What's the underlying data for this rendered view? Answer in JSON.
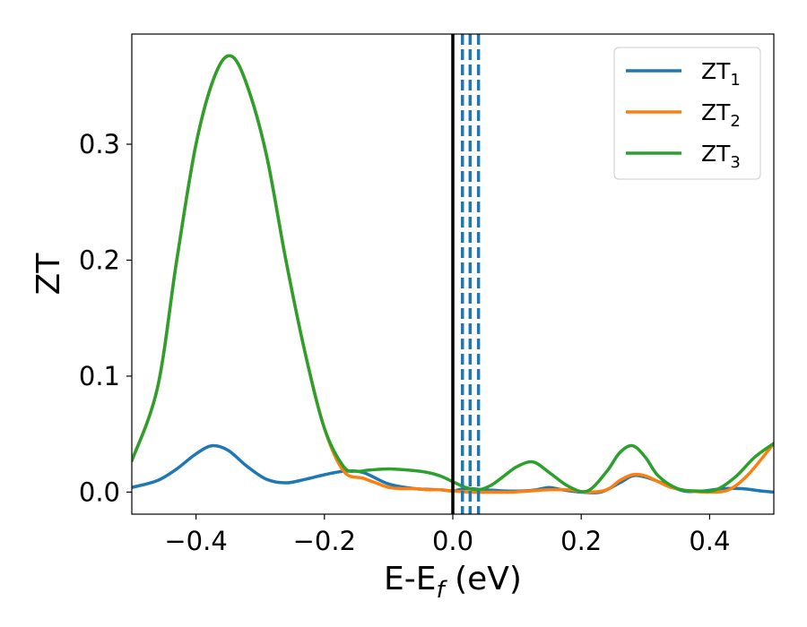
{
  "chart_data": {
    "type": "line",
    "xlabel": {
      "main": "E-E",
      "sub": "f",
      "unit": " (eV)"
    },
    "ylabel": "ZT",
    "xlim": [
      -0.5,
      0.5
    ],
    "ylim": [
      -0.019,
      0.395
    ],
    "xticks": [
      -0.4,
      -0.2,
      0.0,
      0.2,
      0.4
    ],
    "xtick_labels": [
      "−0.4",
      "−0.2",
      "0.0",
      "0.2",
      "0.4"
    ],
    "yticks": [
      0.0,
      0.1,
      0.2,
      0.3
    ],
    "ytick_labels": [
      "0.0",
      "0.1",
      "0.2",
      "0.3"
    ],
    "grid": false,
    "legend_position": "top-right",
    "reference_lines": [
      {
        "x": 0.0,
        "style": "solid",
        "color": "#000000"
      },
      {
        "x": 0.015,
        "style": "dashed",
        "color": "#1f77b4"
      },
      {
        "x": 0.027,
        "style": "dashed",
        "color": "#1f77b4"
      },
      {
        "x": 0.04,
        "style": "dashed",
        "color": "#1f77b4"
      }
    ],
    "series": [
      {
        "name": "ZT",
        "sub": "1",
        "color": "#1f77b4",
        "x": [
          -0.5,
          -0.46,
          -0.43,
          -0.4,
          -0.375,
          -0.35,
          -0.32,
          -0.29,
          -0.26,
          -0.23,
          -0.2,
          -0.17,
          -0.14,
          -0.1,
          -0.06,
          -0.02,
          0.0,
          0.02,
          0.05,
          0.08,
          0.11,
          0.13,
          0.15,
          0.17,
          0.2,
          0.23,
          0.26,
          0.28,
          0.3,
          0.33,
          0.36,
          0.39,
          0.42,
          0.45,
          0.48,
          0.5
        ],
        "y": [
          0.004,
          0.01,
          0.02,
          0.033,
          0.04,
          0.036,
          0.022,
          0.011,
          0.008,
          0.011,
          0.015,
          0.018,
          0.017,
          0.007,
          0.003,
          0.002,
          0.001,
          0.003,
          0.002,
          0.001,
          0.001,
          0.002,
          0.004,
          0.002,
          0.0,
          0.0,
          0.008,
          0.014,
          0.013,
          0.007,
          0.001,
          0.001,
          0.003,
          0.003,
          0.001,
          0.0
        ]
      },
      {
        "name": "ZT",
        "sub": "2",
        "color": "#ff7f0e",
        "x": [
          -0.5,
          -0.46,
          -0.43,
          -0.4,
          -0.37,
          -0.345,
          -0.32,
          -0.29,
          -0.26,
          -0.23,
          -0.2,
          -0.17,
          -0.14,
          -0.12,
          -0.1,
          -0.08,
          -0.06,
          -0.04,
          -0.02,
          0.0,
          0.03,
          0.06,
          0.09,
          0.12,
          0.15,
          0.18,
          0.21,
          0.24,
          0.26,
          0.28,
          0.3,
          0.32,
          0.34,
          0.37,
          0.4,
          0.43,
          0.46,
          0.5
        ],
        "y": [
          0.027,
          0.09,
          0.2,
          0.3,
          0.36,
          0.376,
          0.35,
          0.29,
          0.2,
          0.12,
          0.055,
          0.018,
          0.012,
          0.008,
          0.004,
          0.003,
          0.003,
          0.002,
          0.002,
          0.001,
          0.0,
          0.0,
          0.0,
          0.001,
          0.002,
          0.002,
          0.0,
          0.002,
          0.01,
          0.015,
          0.014,
          0.009,
          0.004,
          0.001,
          0.0,
          0.002,
          0.015,
          0.042
        ]
      },
      {
        "name": "ZT",
        "sub": "3",
        "color": "#2ca02c",
        "x": [
          -0.5,
          -0.46,
          -0.43,
          -0.4,
          -0.37,
          -0.345,
          -0.32,
          -0.29,
          -0.26,
          -0.23,
          -0.2,
          -0.17,
          -0.15,
          -0.13,
          -0.1,
          -0.07,
          -0.04,
          -0.02,
          0.0,
          0.02,
          0.04,
          0.06,
          0.08,
          0.1,
          0.125,
          0.15,
          0.18,
          0.21,
          0.24,
          0.26,
          0.28,
          0.3,
          0.32,
          0.35,
          0.38,
          0.41,
          0.44,
          0.47,
          0.5
        ],
        "y": [
          0.027,
          0.09,
          0.2,
          0.3,
          0.36,
          0.376,
          0.35,
          0.29,
          0.2,
          0.12,
          0.055,
          0.022,
          0.018,
          0.019,
          0.02,
          0.019,
          0.017,
          0.014,
          0.009,
          0.004,
          0.002,
          0.006,
          0.014,
          0.022,
          0.026,
          0.017,
          0.005,
          0.001,
          0.018,
          0.034,
          0.04,
          0.03,
          0.014,
          0.003,
          0.001,
          0.002,
          0.013,
          0.03,
          0.042
        ]
      }
    ]
  }
}
